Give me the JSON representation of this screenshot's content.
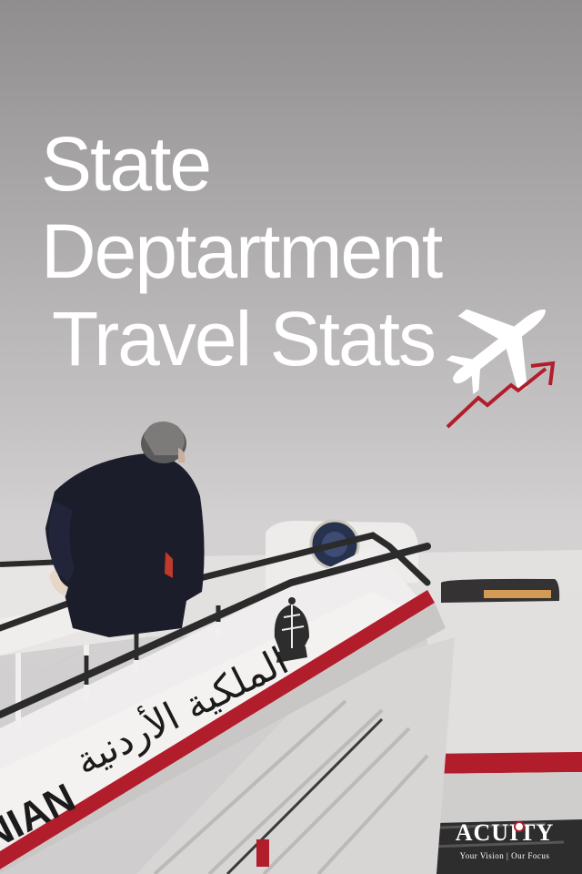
{
  "title": {
    "line1": "State",
    "line2": "Deptartment",
    "line3": "Travel Stats"
  },
  "icons": {
    "plane": "airplane-icon",
    "trend": "trend-up-arrow-icon"
  },
  "stair_text": {
    "latin": "NIAN",
    "arabic": "الملكية الأردنية"
  },
  "logo": {
    "name": "ACUITY",
    "tagline": "Your Vision | Our Focus"
  },
  "colors": {
    "sky": "#b9b7b7",
    "title_text": "#ffffff",
    "accent_red": "#b21d2c",
    "stair_white": "#ebe9e9"
  }
}
